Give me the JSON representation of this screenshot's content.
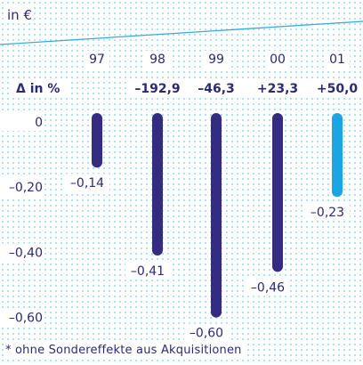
{
  "unit_label": "in €",
  "footnote": "* ohne Sondereffekte aus Akquisitionen",
  "delta_label": "Δ in %",
  "colors": {
    "bar_dark": "#332c80",
    "bar_light": "#1aa6e6",
    "dots": "#6fcce6",
    "text": "#2b2a73",
    "trend_line": "#39a9dc"
  },
  "chart_data": {
    "type": "bar",
    "categories": [
      "97",
      "98",
      "99",
      "00",
      "01"
    ],
    "values": [
      -0.14,
      -0.41,
      -0.6,
      -0.46,
      -0.23
    ],
    "value_labels": [
      "–0,14",
      "–0,41",
      "–0,60",
      "–0,46",
      "–0,23"
    ],
    "bar_colors": [
      "dark",
      "dark",
      "dark",
      "dark",
      "light"
    ],
    "delta_percent": [
      "",
      "–192,9",
      "–46,3",
      "+23,3",
      "+50,0"
    ],
    "yticks": [
      0,
      -0.2,
      -0.4,
      -0.6
    ],
    "ytick_labels": [
      "0",
      "–0,20",
      "–0,40",
      "–0,60"
    ],
    "ylim": [
      -0.6,
      0
    ],
    "grid": false
  }
}
